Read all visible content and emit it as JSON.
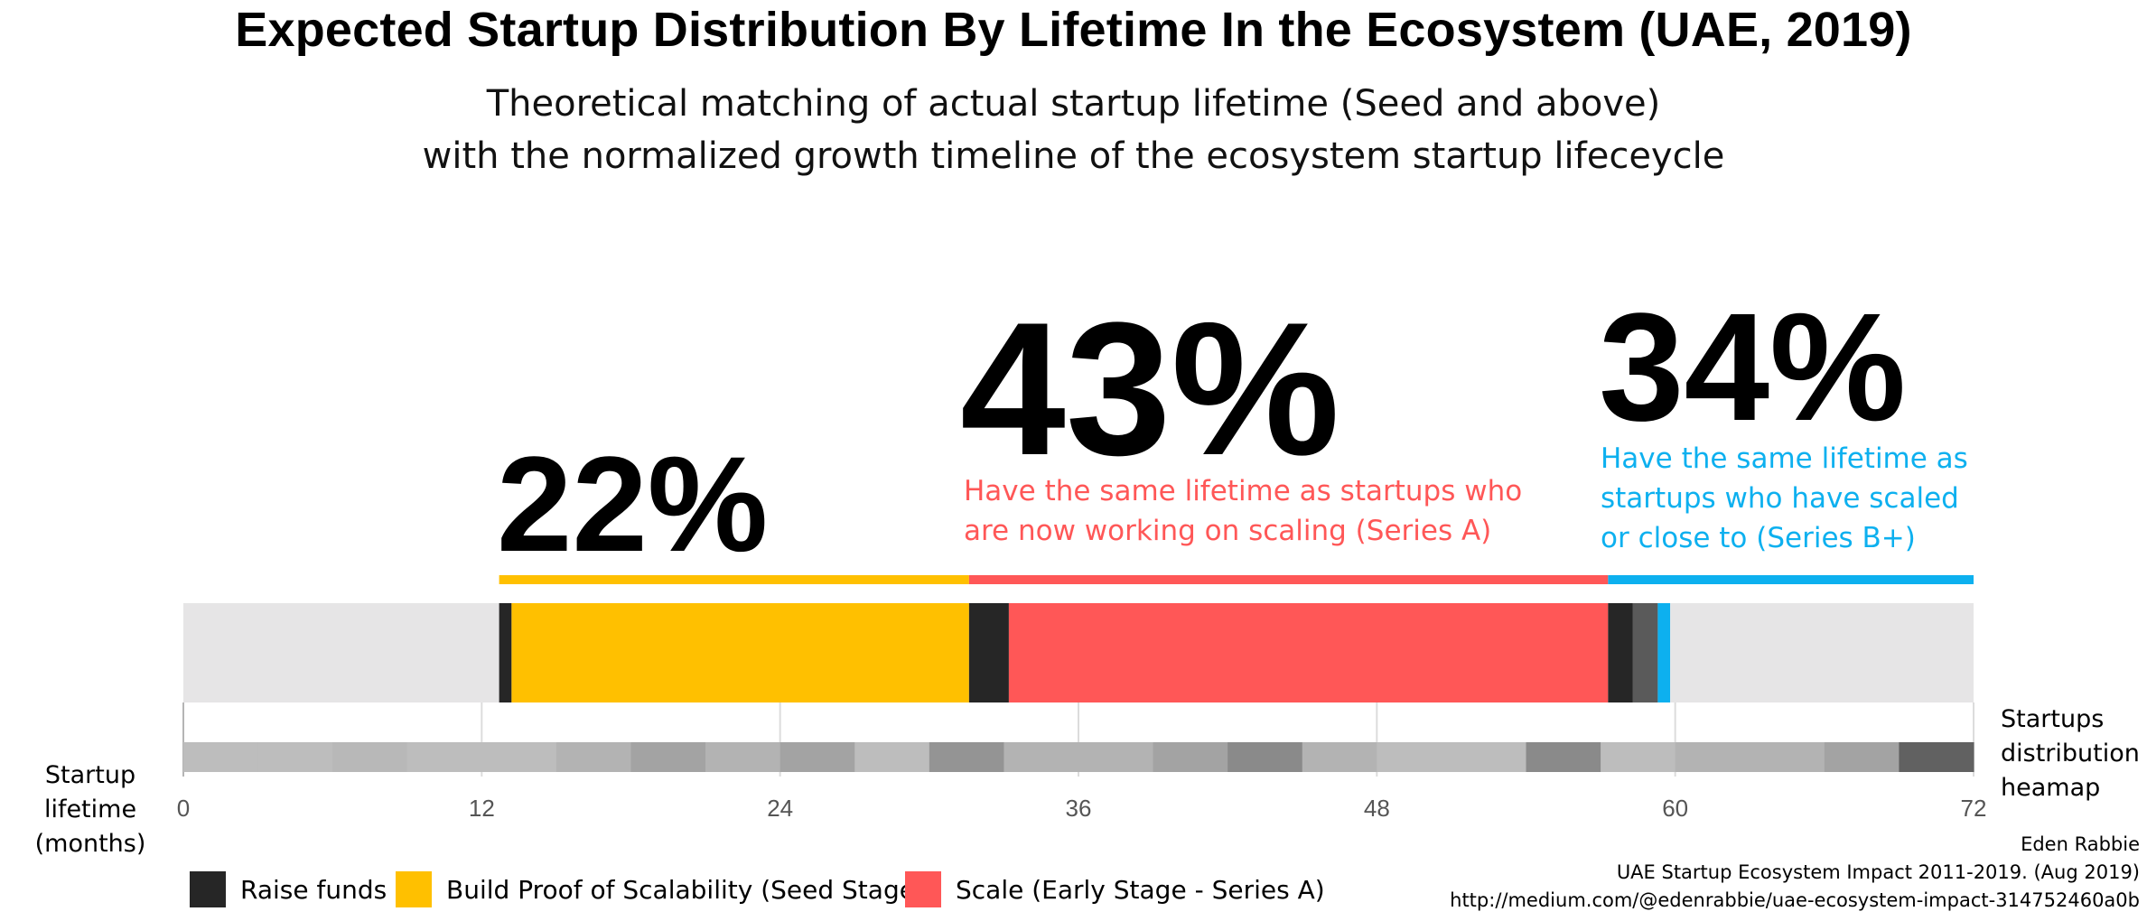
{
  "chart_data": {
    "type": "bar",
    "title": "Expected Startup Distribution By Lifetime In the Ecosystem (UAE, 2019)",
    "subtitle_lines": [
      "Theoretical matching of actual startup lifetime (Seed and above)",
      "with the normalized growth timeline of the ecosystem startup lifeceycle"
    ],
    "x_axis": {
      "label_lines": [
        "Startup",
        "lifetime",
        "(months)"
      ],
      "range": [
        0,
        72
      ],
      "ticks": [
        0,
        12,
        24,
        36,
        48,
        60,
        72
      ]
    },
    "timeline_segments": [
      {
        "stage": "empty",
        "start": 0,
        "end": 12.7,
        "color": "#e6e5e6"
      },
      {
        "stage": "raise",
        "start": 12.7,
        "end": 13.2,
        "color": "#262626"
      },
      {
        "stage": "seed",
        "start": 13.2,
        "end": 31.6,
        "color": "#ffc000"
      },
      {
        "stage": "raise",
        "start": 31.6,
        "end": 33.2,
        "color": "#262626"
      },
      {
        "stage": "scale",
        "start": 33.2,
        "end": 57.3,
        "color": "#ff5757"
      },
      {
        "stage": "raise",
        "start": 57.3,
        "end": 58.3,
        "color": "#262626"
      },
      {
        "stage": "raise-grey",
        "start": 58.3,
        "end": 59.3,
        "color": "#5a5a5a"
      },
      {
        "stage": "series-b",
        "start": 59.3,
        "end": 59.8,
        "color": "#0db0ef"
      },
      {
        "stage": "empty",
        "start": 59.8,
        "end": 72,
        "color": "#e6e5e6"
      }
    ],
    "highlight_segments": [
      {
        "label": "22%",
        "start": 12.7,
        "end": 31.6,
        "color": "#ffc000"
      },
      {
        "label": "43%",
        "start": 31.6,
        "end": 57.3,
        "color": "#ff5757",
        "description": "Have the same lifetime as startups who are now working on scaling (Series A)"
      },
      {
        "label": "34%",
        "start": 57.3,
        "end": 72,
        "color": "#0db0ef",
        "description": "Have the same lifetime as startups who have scaled or close to (Series B+)"
      }
    ],
    "heatmap": {
      "label_lines": [
        "Startups",
        "distribution",
        "heamap"
      ],
      "cell_width_months": 3,
      "intensity": [
        0.26,
        0.26,
        0.28,
        0.26,
        0.26,
        0.3,
        0.36,
        0.3,
        0.36,
        0.26,
        0.42,
        0.3,
        0.3,
        0.36,
        0.46,
        0.3,
        0.26,
        0.26,
        0.46,
        0.26,
        0.3,
        0.3,
        0.36,
        0.62
      ]
    },
    "legend": [
      {
        "label": "Raise funds",
        "color": "#262626"
      },
      {
        "label": "Build Proof of Scalability (Seed Stage)",
        "color": "#ffc000"
      },
      {
        "label": "Scale (Early Stage - Series A)",
        "color": "#ff5757"
      }
    ]
  },
  "credit": {
    "author": "Eden Rabbie",
    "source": "UAE Startup Ecosystem Impact 2011-2019. (Aug 2019)",
    "url": "http://medium.com/@edenrabbie/uae-ecosystem-impact-314752460a0b"
  }
}
